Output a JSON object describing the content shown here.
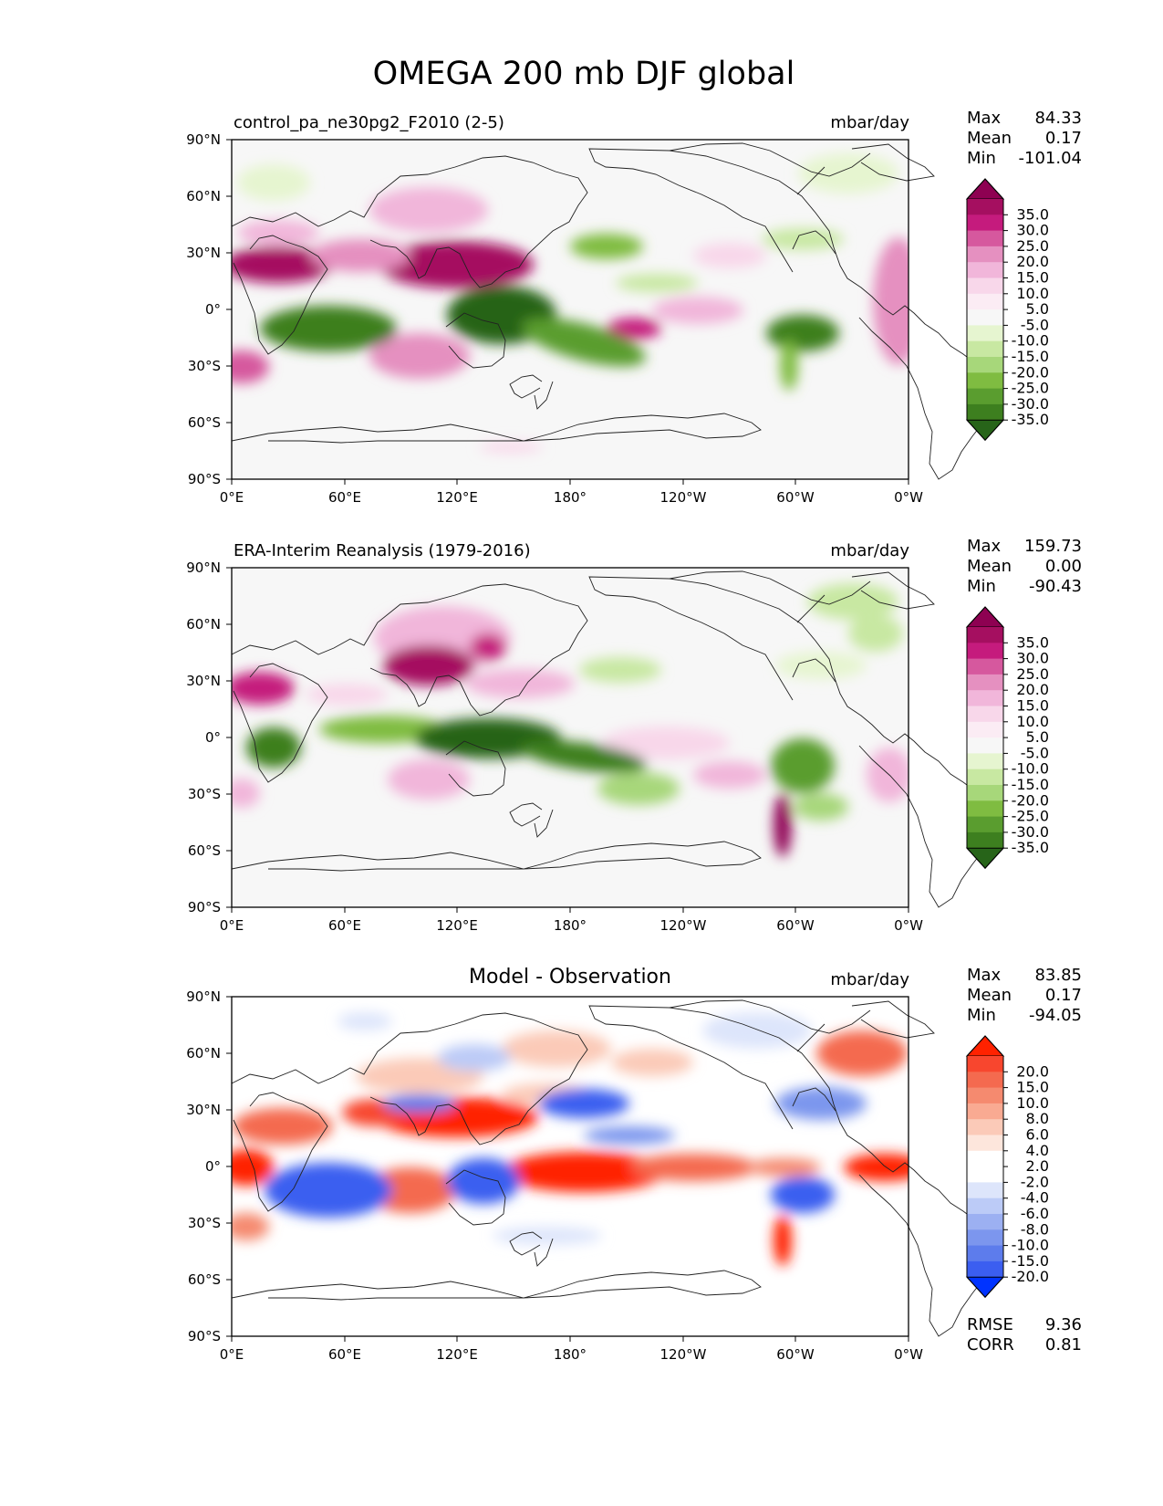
{
  "figure": {
    "title": "OMEGA 200 mb DJF global"
  },
  "lat_ticks": [
    "90°N",
    "60°N",
    "30°N",
    "0°",
    "30°S",
    "60°S",
    "90°S"
  ],
  "lon_ticks": [
    "0°E",
    "60°E",
    "120°E",
    "180°",
    "120°W",
    "60°W",
    "0°W"
  ],
  "chart_data": [
    {
      "type": "heatmap",
      "title": "control_pa_ne30pg2_F2010 (2-5)",
      "units": "mbar/day",
      "stats": {
        "max_label": "Max",
        "max": "84.33",
        "mean_label": "Mean",
        "mean": "0.17",
        "min_label": "Min",
        "min": "-101.04"
      },
      "colorbar": {
        "levels": [
          "35.0",
          "30.0",
          "25.0",
          "20.0",
          "15.0",
          "10.0",
          "5.0",
          "-5.0",
          "-10.0",
          "-15.0",
          "-20.0",
          "-25.0",
          "-30.0",
          "-35.0"
        ],
        "colors": [
          "#8e0152",
          "#a50f60",
          "#c51b7d",
          "#d6589e",
          "#e590c0",
          "#f1b6da",
          "#f8d7ea",
          "#fbecf4",
          "#f7f7f7",
          "#e6f5d0",
          "#c8e8a2",
          "#a7d77a",
          "#7fbc41",
          "#5a9d2f",
          "#3d7f1f",
          "#276419"
        ]
      }
    },
    {
      "type": "heatmap",
      "title": "ERA-Interim Reanalysis (1979-2016)",
      "units": "mbar/day",
      "stats": {
        "max_label": "Max",
        "max": "159.73",
        "mean_label": "Mean",
        "mean": "0.00",
        "min_label": "Min",
        "min": "-90.43"
      },
      "colorbar": {
        "levels": [
          "35.0",
          "30.0",
          "25.0",
          "20.0",
          "15.0",
          "10.0",
          "5.0",
          "-5.0",
          "-10.0",
          "-15.0",
          "-20.0",
          "-25.0",
          "-30.0",
          "-35.0"
        ],
        "colors": [
          "#8e0152",
          "#a50f60",
          "#c51b7d",
          "#d6589e",
          "#e590c0",
          "#f1b6da",
          "#f8d7ea",
          "#fbecf4",
          "#f7f7f7",
          "#e6f5d0",
          "#c8e8a2",
          "#a7d77a",
          "#7fbc41",
          "#5a9d2f",
          "#3d7f1f",
          "#276419"
        ]
      }
    },
    {
      "type": "heatmap",
      "title": "Model - Observation",
      "units": "mbar/day",
      "stats": {
        "max_label": "Max",
        "max": "83.85",
        "mean_label": "Mean",
        "mean": "0.17",
        "min_label": "Min",
        "min": "-94.05"
      },
      "metrics": {
        "rmse_label": "RMSE",
        "rmse": "9.36",
        "corr_label": "CORR",
        "corr": "0.81"
      },
      "colorbar": {
        "levels": [
          "20.0",
          "15.0",
          "10.0",
          "8.0",
          "6.0",
          "4.0",
          "2.0",
          "-2.0",
          "-4.0",
          "-6.0",
          "-8.0",
          "-10.0",
          "-15.0",
          "-20.0"
        ],
        "colors": [
          "#ff2200",
          "#f8462e",
          "#f46a4f",
          "#f58a6f",
          "#f9aa92",
          "#fbcab8",
          "#fde6dc",
          "#ffffff",
          "#ffffff",
          "#dde5fb",
          "#bccbf7",
          "#9cb0f2",
          "#7c96ee",
          "#5d7cec",
          "#3b5ef0",
          "#0033ff"
        ]
      }
    }
  ]
}
